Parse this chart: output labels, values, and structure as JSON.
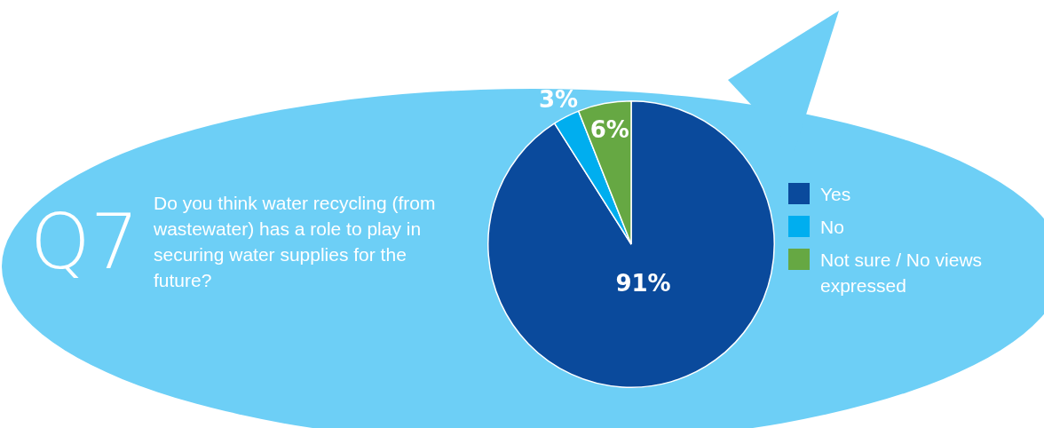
{
  "chart_data": {
    "type": "pie",
    "title": "Q7",
    "subtitle": "Do you think water recycling (from wastewater) has a role to play in securing water supplies for the future?",
    "categories": [
      "Yes",
      "No",
      "Not sure / No views expressed"
    ],
    "values": [
      91,
      3,
      6
    ],
    "colors": [
      "#0a4a9c",
      "#00aeef",
      "#66a843"
    ],
    "value_labels": [
      "91%",
      "3%",
      "6%"
    ],
    "legend": "right"
  }
}
